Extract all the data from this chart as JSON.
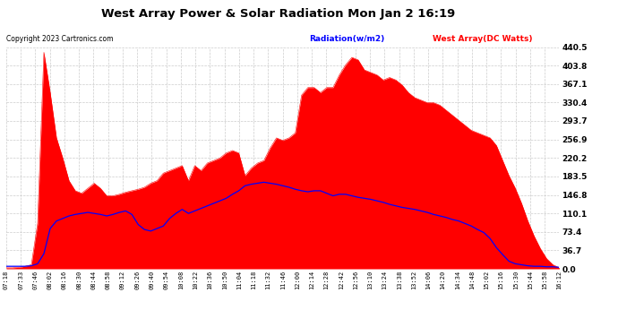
{
  "title": "West Array Power & Solar Radiation Mon Jan 2 16:19",
  "copyright": "Copyright 2023 Cartronics.com",
  "legend_radiation": "Radiation(w/m2)",
  "legend_west": "West Array(DC Watts)",
  "ylabel_right_ticks": [
    0.0,
    36.7,
    73.4,
    110.1,
    146.8,
    183.5,
    220.2,
    256.9,
    293.7,
    330.4,
    367.1,
    403.8,
    440.5
  ],
  "ymax": 440.5,
  "ymin": 0.0,
  "bg_color": "#ffffff",
  "plot_bg_color": "#ffffff",
  "grid_color": "#cccccc",
  "red_fill_color": "#ff0000",
  "blue_line_color": "#0000ff",
  "title_color": "#000000",
  "radiation_color": "#0000ff",
  "west_color": "#ff0000",
  "x_labels": [
    "07:18",
    "07:33",
    "07:46",
    "08:02",
    "08:16",
    "08:30",
    "08:44",
    "08:58",
    "09:12",
    "09:26",
    "09:40",
    "09:54",
    "10:08",
    "10:22",
    "10:36",
    "10:50",
    "11:04",
    "11:18",
    "11:32",
    "11:46",
    "12:00",
    "12:14",
    "12:28",
    "12:42",
    "12:56",
    "13:10",
    "13:24",
    "13:38",
    "13:52",
    "14:06",
    "14:20",
    "14:34",
    "14:48",
    "15:02",
    "15:16",
    "15:30",
    "15:44",
    "15:58",
    "16:12"
  ],
  "west_data": [
    2,
    2,
    3,
    5,
    8,
    90,
    430,
    350,
    260,
    220,
    175,
    155,
    150,
    160,
    170,
    160,
    145,
    145,
    148,
    152,
    155,
    158,
    162,
    170,
    175,
    190,
    195,
    200,
    205,
    175,
    205,
    195,
    210,
    215,
    220,
    230,
    235,
    230,
    185,
    200,
    210,
    215,
    240,
    260,
    255,
    260,
    270,
    345,
    360,
    360,
    350,
    360,
    360,
    385,
    405,
    420,
    415,
    395,
    390,
    385,
    375,
    380,
    375,
    365,
    350,
    340,
    335,
    330,
    330,
    325,
    315,
    305,
    295,
    285,
    275,
    270,
    265,
    260,
    245,
    215,
    185,
    160,
    130,
    95,
    65,
    40,
    20,
    8,
    2
  ],
  "radiation_data": [
    5,
    5,
    5,
    5,
    6,
    10,
    30,
    80,
    95,
    100,
    105,
    108,
    110,
    112,
    110,
    108,
    105,
    108,
    112,
    115,
    108,
    88,
    78,
    75,
    80,
    85,
    100,
    110,
    118,
    110,
    115,
    120,
    125,
    130,
    135,
    140,
    148,
    155,
    165,
    168,
    170,
    172,
    170,
    168,
    165,
    162,
    158,
    155,
    153,
    155,
    155,
    150,
    145,
    148,
    148,
    145,
    142,
    140,
    138,
    135,
    132,
    128,
    125,
    122,
    120,
    118,
    115,
    112,
    108,
    105,
    102,
    98,
    95,
    90,
    85,
    78,
    72,
    60,
    42,
    28,
    15,
    10,
    8,
    6,
    5,
    5,
    4,
    4,
    3
  ],
  "n_points": 89
}
